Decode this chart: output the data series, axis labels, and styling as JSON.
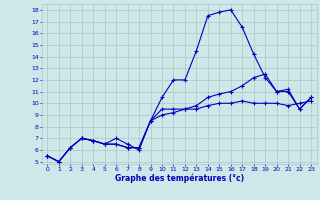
{
  "xlabel": "Graphe des températures (°c)",
  "bg_color": "#cce8e8",
  "grid_color": "#aac8c8",
  "line_color": "#0000bb",
  "ylim": [
    5,
    18
  ],
  "xlim": [
    0,
    23
  ],
  "yticks": [
    5,
    6,
    7,
    8,
    9,
    10,
    11,
    12,
    13,
    14,
    15,
    16,
    17,
    18
  ],
  "xticks": [
    0,
    1,
    2,
    3,
    4,
    5,
    6,
    7,
    8,
    9,
    10,
    11,
    12,
    13,
    14,
    15,
    16,
    17,
    18,
    19,
    20,
    21,
    22,
    23
  ],
  "line1_x": [
    0,
    1,
    2,
    3,
    4,
    5,
    6,
    7,
    8,
    9,
    10,
    11,
    12,
    13,
    14,
    15,
    16,
    17,
    18,
    19,
    20,
    21,
    22,
    23
  ],
  "line1_y": [
    5.5,
    5.0,
    6.2,
    7.0,
    6.8,
    6.5,
    6.5,
    6.2,
    6.2,
    8.5,
    10.5,
    12.0,
    12.0,
    14.5,
    17.5,
    17.8,
    18.0,
    16.5,
    14.2,
    12.2,
    11.0,
    11.0,
    9.5,
    10.5
  ],
  "line2_x": [
    0,
    1,
    2,
    3,
    4,
    5,
    6,
    7,
    8,
    9,
    10,
    11,
    12,
    13,
    14,
    15,
    16,
    17,
    18,
    19,
    20,
    21,
    22,
    23
  ],
  "line2_y": [
    5.5,
    5.0,
    6.2,
    7.0,
    6.8,
    6.5,
    7.0,
    6.5,
    6.0,
    8.5,
    9.0,
    9.2,
    9.5,
    9.5,
    9.8,
    10.0,
    10.0,
    10.2,
    10.0,
    10.0,
    10.0,
    9.8,
    10.0,
    10.2
  ],
  "line3_x": [
    0,
    1,
    2,
    3,
    4,
    5,
    6,
    7,
    8,
    9,
    10,
    11,
    12,
    13,
    14,
    15,
    16,
    17,
    18,
    19,
    20,
    21,
    22,
    23
  ],
  "line3_y": [
    5.5,
    5.0,
    6.2,
    7.0,
    6.8,
    6.5,
    6.5,
    6.2,
    6.2,
    8.5,
    9.5,
    9.5,
    9.5,
    9.8,
    10.5,
    10.8,
    11.0,
    11.5,
    12.2,
    12.5,
    11.0,
    11.2,
    9.5,
    10.5
  ]
}
